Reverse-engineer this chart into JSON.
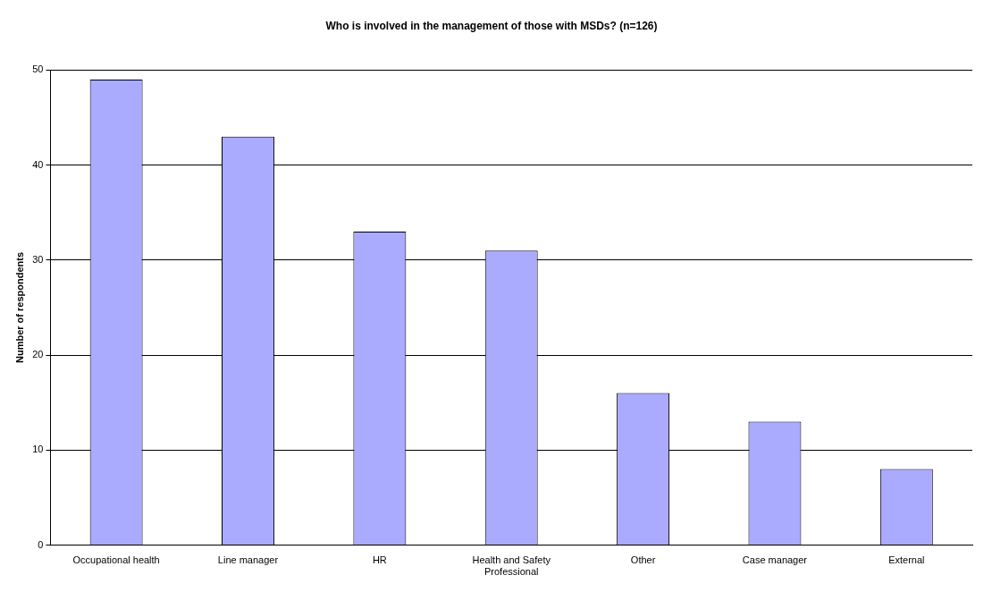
{
  "chart_data": {
    "type": "bar",
    "title": "Who is involved in the management of those with MSDs? (n=126)",
    "ylabel": "Number of respondents",
    "categories": [
      "Occupational health",
      "Line manager",
      "HR",
      "Health and Safety Professional",
      "Other",
      "Case manager",
      "External"
    ],
    "values": [
      49,
      43,
      33,
      31,
      16,
      13,
      8
    ],
    "color": "#aaaaff",
    "ylim": [
      0,
      50
    ],
    "yticks": [
      0,
      10,
      20,
      30,
      40,
      50
    ],
    "grid": "y",
    "legend": false
  }
}
